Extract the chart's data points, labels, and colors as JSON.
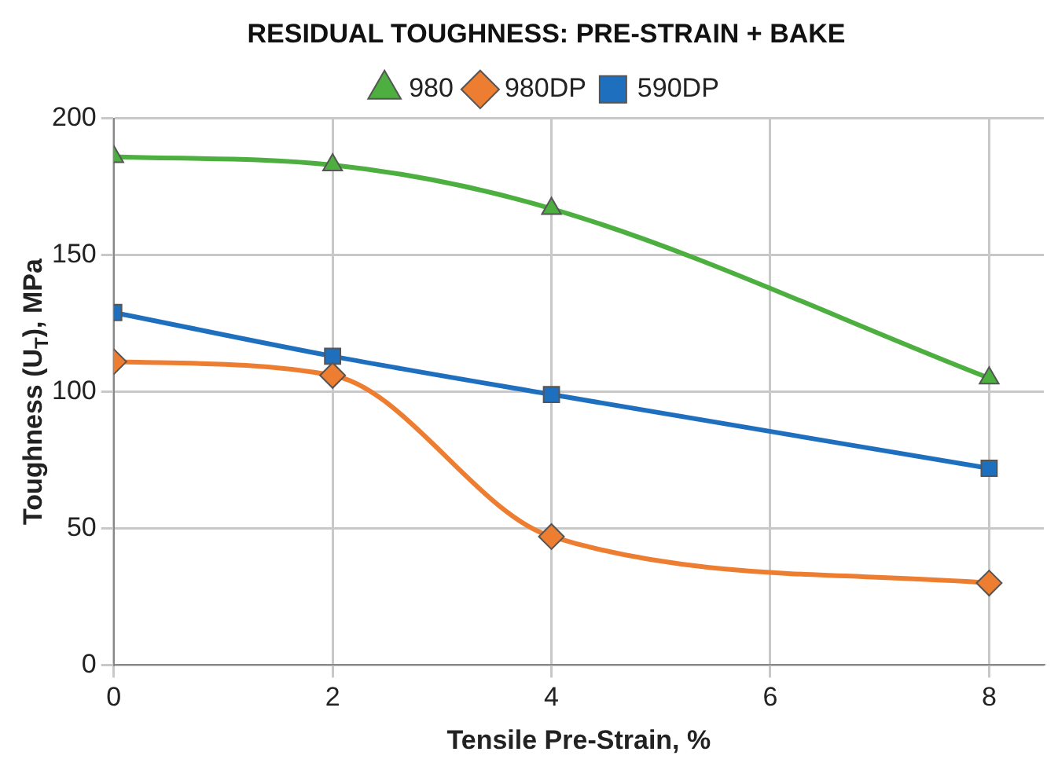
{
  "chart_data": {
    "type": "line",
    "title": "RESIDUAL TOUGHNESS: PRE-STRAIN + BAKE",
    "xlabel": "Tensile Pre-Strain, %",
    "ylabel": "Toughness (U$_{T}$), MPa",
    "x": [
      0,
      2,
      4,
      8
    ],
    "series": [
      {
        "name": "980",
        "color": "#4caf3f",
        "marker": "triangle",
        "values": [
          186,
          183,
          167,
          105
        ]
      },
      {
        "name": "980DP",
        "color": "#ed7d31",
        "marker": "diamond",
        "values": [
          111,
          106,
          47,
          30
        ]
      },
      {
        "name": "590DP",
        "color": "#1f6fbf",
        "marker": "square",
        "values": [
          129,
          113,
          99,
          72
        ]
      }
    ],
    "xlim": [
      0,
      8.5
    ],
    "xticks": [
      0,
      2,
      4,
      6,
      8
    ],
    "ylim": [
      0,
      200
    ],
    "yticks": [
      0,
      50,
      100,
      150,
      200
    ],
    "grid": true,
    "legend": "top",
    "line_style": "solid"
  }
}
